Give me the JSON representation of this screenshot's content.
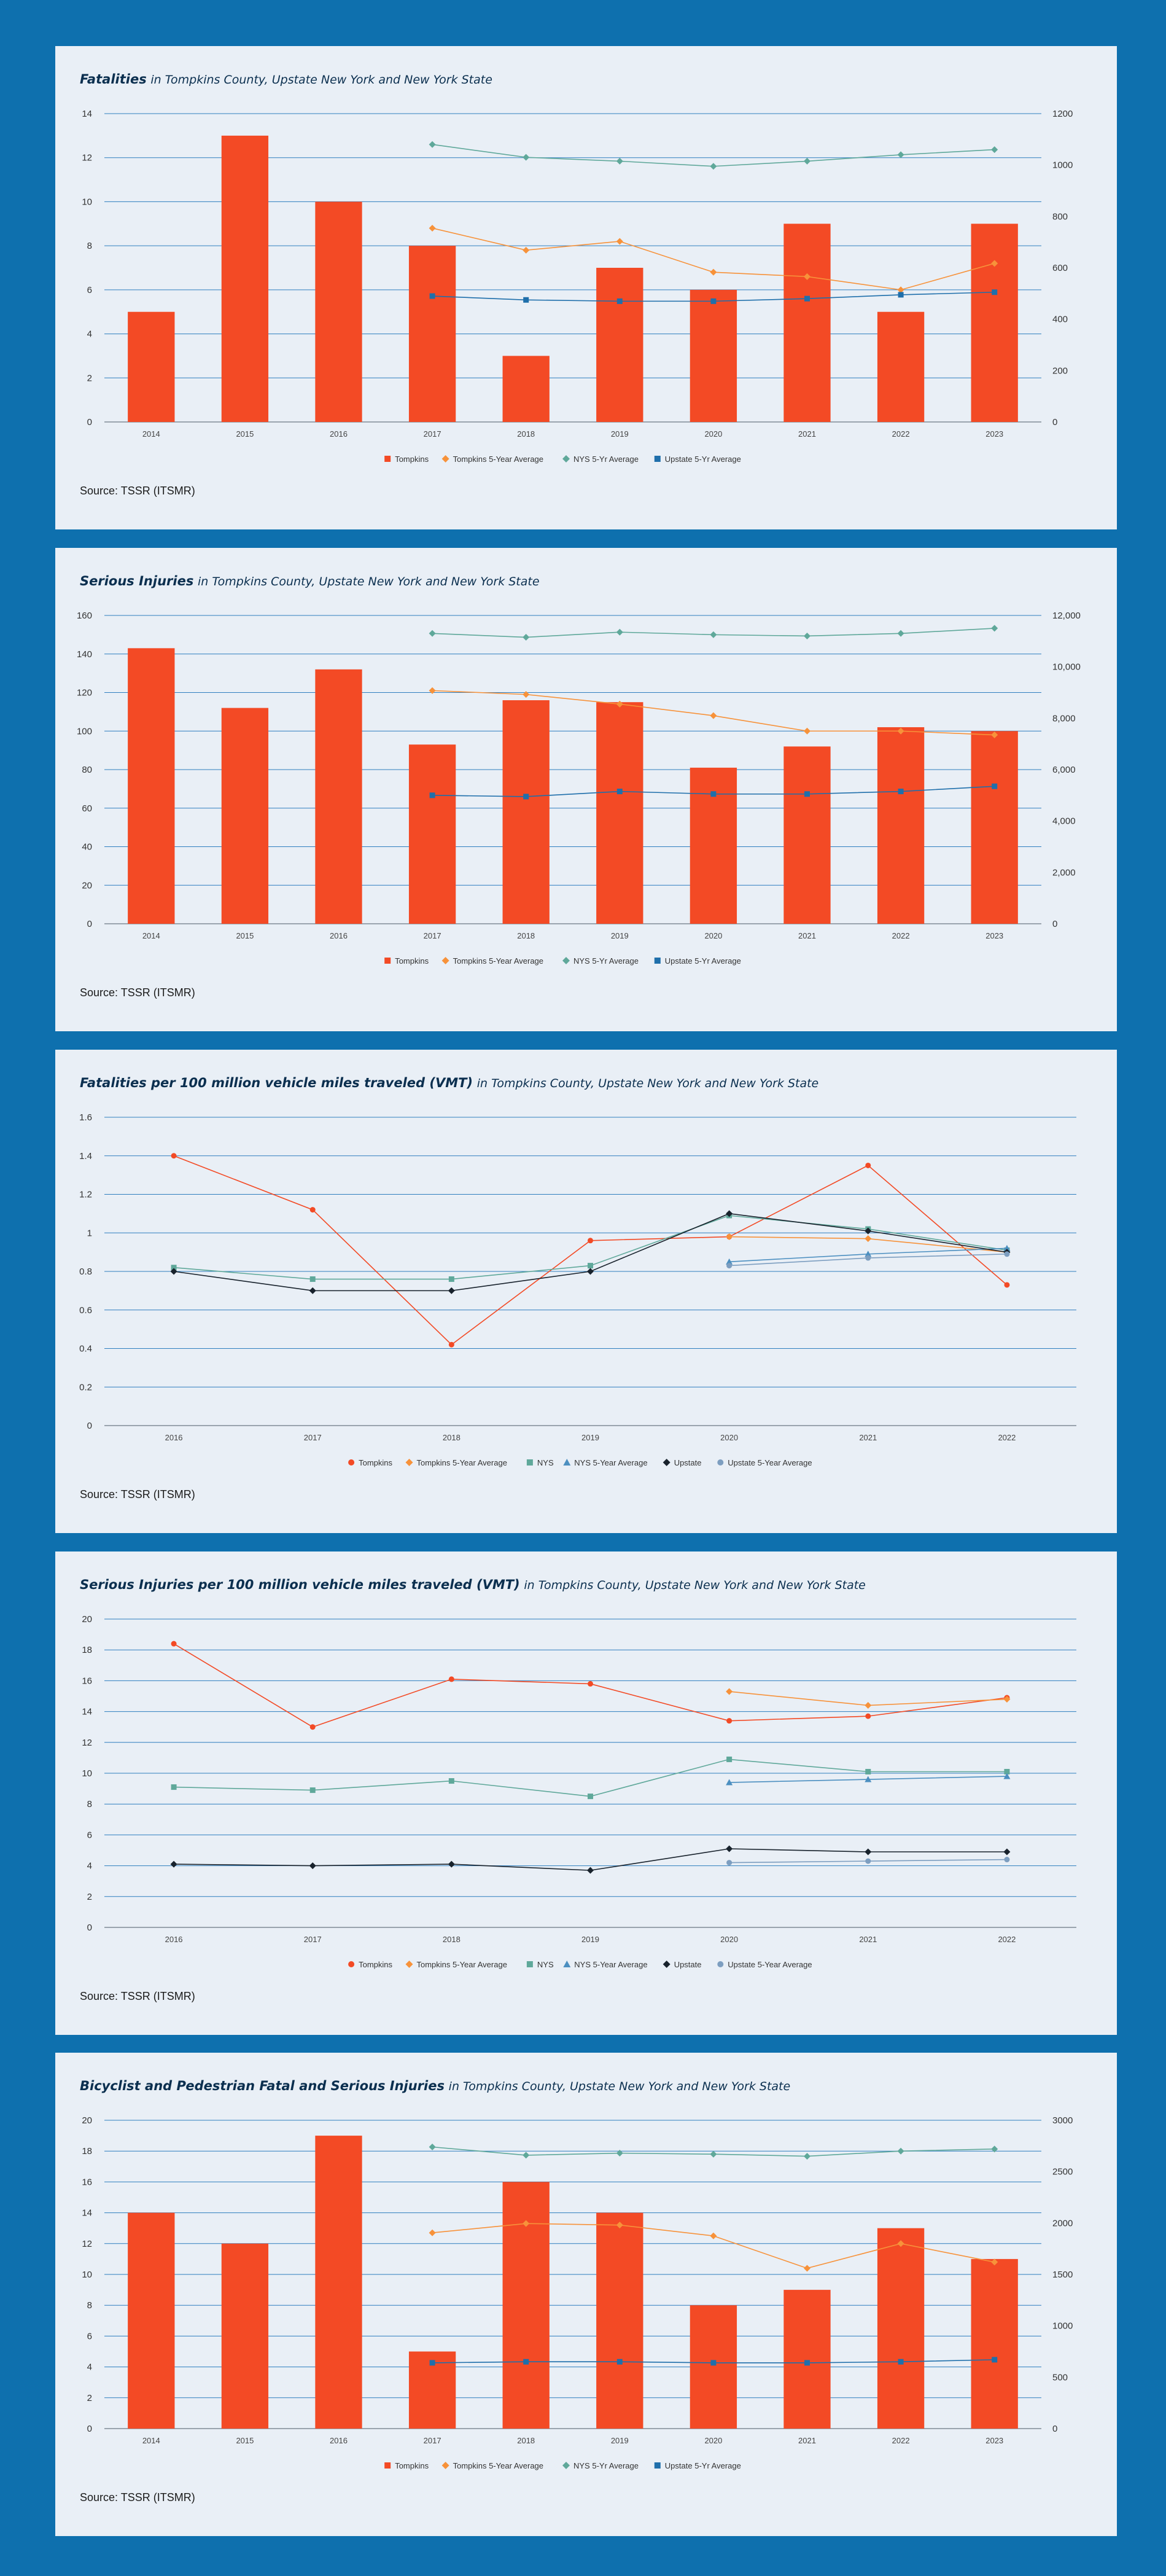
{
  "colors": {
    "background": "#0e70ae",
    "panel": "#e9eff6",
    "grid": "#2f7fbf",
    "tompkins": "#f34a25",
    "tompkins_avg": "#f7923a",
    "nys": "#5fa89a",
    "nys_avg": "#4c8fc0",
    "upstate": "#18222c",
    "upstate_avg": "#7d9ec0",
    "upstate_5yr_dot": "#1f6fab"
  },
  "source_label": "Source: TSSR (ITSMR)",
  "chart_data": [
    {
      "type": "bar",
      "title_bold": "Fatalities",
      "title_rest": "in Tompkins County, Upstate New York and New York State",
      "categories": [
        "2014",
        "2015",
        "2016",
        "2017",
        "2018",
        "2019",
        "2020",
        "2021",
        "2022",
        "2023"
      ],
      "ylim": [
        0,
        14
      ],
      "yticks": [
        "0",
        "2",
        "4",
        "6",
        "8",
        "10",
        "12",
        "14"
      ],
      "y2lim": [
        0,
        1200
      ],
      "y2ticks": [
        "0",
        "200",
        "400",
        "600",
        "800",
        "1000",
        "1200"
      ],
      "series": [
        {
          "name": "Tompkins",
          "kind": "bar",
          "axis": "left",
          "color": "#f34a25",
          "values": [
            5,
            13,
            10,
            8,
            3,
            7,
            6,
            9,
            5,
            9
          ]
        },
        {
          "name": "Tompkins 5-Year Average",
          "kind": "line",
          "axis": "left",
          "marker": "diamond",
          "color": "#f7923a",
          "values": [
            null,
            null,
            null,
            8.8,
            7.8,
            8.2,
            6.8,
            6.6,
            6.0,
            7.2
          ]
        },
        {
          "name": "NYS 5-Yr Average",
          "kind": "line",
          "axis": "right",
          "marker": "diamond",
          "color": "#5fa89a",
          "values": [
            null,
            null,
            null,
            1080,
            1030,
            1015,
            995,
            1015,
            1040,
            1060
          ]
        },
        {
          "name": "Upstate 5-Yr Average",
          "kind": "line",
          "axis": "right",
          "marker": "square",
          "color": "#1f6fab",
          "values": [
            null,
            null,
            null,
            490,
            475,
            470,
            470,
            480,
            495,
            505
          ]
        }
      ]
    },
    {
      "type": "bar",
      "title_bold": "Serious Injuries",
      "title_rest": "in Tompkins County, Upstate New York and New York State",
      "categories": [
        "2014",
        "2015",
        "2016",
        "2017",
        "2018",
        "2019",
        "2020",
        "2021",
        "2022",
        "2023"
      ],
      "ylim": [
        0,
        160
      ],
      "yticks": [
        "0",
        "20",
        "40",
        "60",
        "80",
        "100",
        "120",
        "140",
        "160"
      ],
      "y2lim": [
        0,
        12000
      ],
      "y2ticks": [
        "0",
        "2,000",
        "4,000",
        "6,000",
        "8,000",
        "10,000",
        "12,000"
      ],
      "series": [
        {
          "name": "Tompkins",
          "kind": "bar",
          "axis": "left",
          "color": "#f34a25",
          "values": [
            143,
            112,
            132,
            93,
            116,
            115,
            81,
            92,
            102,
            100
          ]
        },
        {
          "name": "Tompkins 5-Year Average",
          "kind": "line",
          "axis": "left",
          "marker": "diamond",
          "color": "#f7923a",
          "values": [
            null,
            null,
            null,
            121,
            119,
            114,
            108,
            100,
            100,
            98
          ]
        },
        {
          "name": "NYS 5-Yr Average",
          "kind": "line",
          "axis": "right",
          "marker": "diamond",
          "color": "#5fa89a",
          "values": [
            null,
            null,
            null,
            11300,
            11150,
            11350,
            11250,
            11200,
            11300,
            11500
          ]
        },
        {
          "name": "Upstate 5-Yr Average",
          "kind": "line",
          "axis": "right",
          "marker": "square",
          "color": "#1f6fab",
          "values": [
            null,
            null,
            null,
            5000,
            4950,
            5150,
            5050,
            5050,
            5150,
            5350
          ]
        }
      ]
    },
    {
      "type": "line",
      "title_bold": "Fatalities per 100 million vehicle miles traveled (VMT)",
      "title_rest": "in Tompkins County, Upstate New York and New York State",
      "categories": [
        "2016",
        "2017",
        "2018",
        "2019",
        "2020",
        "2021",
        "2022"
      ],
      "ylim": [
        0,
        1.6
      ],
      "yticks": [
        "0",
        "0.2",
        "0.4",
        "0.6",
        "0.8",
        "1",
        "1.2",
        "1.4",
        "1.6"
      ],
      "series": [
        {
          "name": "Tompkins",
          "kind": "line",
          "marker": "circle",
          "color": "#f34a25",
          "values": [
            1.4,
            1.12,
            0.42,
            0.96,
            0.98,
            1.35,
            0.73
          ]
        },
        {
          "name": "Tompkins 5-Year Average",
          "kind": "line",
          "marker": "diamond",
          "color": "#f7923a",
          "values": [
            null,
            null,
            null,
            null,
            0.98,
            0.97,
            0.9
          ]
        },
        {
          "name": "NYS",
          "kind": "line",
          "marker": "square",
          "color": "#5fa89a",
          "values": [
            0.82,
            0.76,
            0.76,
            0.83,
            1.09,
            1.02,
            0.91
          ]
        },
        {
          "name": "NYS 5-Year Average",
          "kind": "line",
          "marker": "triangle",
          "color": "#4c8fc0",
          "values": [
            null,
            null,
            null,
            null,
            0.85,
            0.89,
            0.92
          ]
        },
        {
          "name": "Upstate",
          "kind": "line",
          "marker": "diamond",
          "color": "#18222c",
          "values": [
            0.8,
            0.7,
            0.7,
            0.8,
            1.1,
            1.01,
            0.9
          ]
        },
        {
          "name": "Upstate 5-Year Average",
          "kind": "line",
          "marker": "circle",
          "color": "#7d9ec0",
          "values": [
            null,
            null,
            null,
            null,
            0.83,
            0.87,
            0.89
          ]
        }
      ]
    },
    {
      "type": "line",
      "title_bold": "Serious Injuries per 100 million vehicle miles traveled (VMT)",
      "title_rest": "in Tompkins County, Upstate New York and New York State",
      "categories": [
        "2016",
        "2017",
        "2018",
        "2019",
        "2020",
        "2021",
        "2022"
      ],
      "ylim": [
        0,
        20
      ],
      "yticks": [
        "0",
        "2",
        "4",
        "6",
        "8",
        "10",
        "12",
        "14",
        "16",
        "18",
        "20"
      ],
      "series": [
        {
          "name": "Tompkins",
          "kind": "line",
          "marker": "circle",
          "color": "#f34a25",
          "values": [
            18.4,
            13.0,
            16.1,
            15.8,
            13.4,
            13.7,
            14.9
          ]
        },
        {
          "name": "Tompkins 5-Year Average",
          "kind": "line",
          "marker": "diamond",
          "color": "#f7923a",
          "values": [
            null,
            null,
            null,
            null,
            15.3,
            14.4,
            14.8
          ]
        },
        {
          "name": "NYS",
          "kind": "line",
          "marker": "square",
          "color": "#5fa89a",
          "values": [
            9.1,
            8.9,
            9.5,
            8.5,
            10.9,
            10.1,
            10.1
          ]
        },
        {
          "name": "NYS 5-Year Average",
          "kind": "line",
          "marker": "triangle",
          "color": "#4c8fc0",
          "values": [
            null,
            null,
            null,
            null,
            9.4,
            9.6,
            9.8
          ]
        },
        {
          "name": "Upstate",
          "kind": "line",
          "marker": "diamond",
          "color": "#18222c",
          "values": [
            4.1,
            4.0,
            4.1,
            3.7,
            5.1,
            4.9,
            4.9
          ]
        },
        {
          "name": "Upstate 5-Year Average",
          "kind": "line",
          "marker": "circle",
          "color": "#7d9ec0",
          "values": [
            null,
            null,
            null,
            null,
            4.2,
            4.3,
            4.4
          ]
        }
      ]
    },
    {
      "type": "bar",
      "title_bold": "Bicyclist and Pedestrian Fatal and Serious Injuries",
      "title_rest": "in Tompkins County, Upstate New York and New York State",
      "categories": [
        "2014",
        "2015",
        "2016",
        "2017",
        "2018",
        "2019",
        "2020",
        "2021",
        "2022",
        "2023"
      ],
      "ylim": [
        0,
        20
      ],
      "yticks": [
        "0",
        "2",
        "4",
        "6",
        "8",
        "10",
        "12",
        "14",
        "16",
        "18",
        "20"
      ],
      "y2lim": [
        0,
        3000
      ],
      "y2ticks": [
        "0",
        "500",
        "1000",
        "1500",
        "2000",
        "2500",
        "3000"
      ],
      "series": [
        {
          "name": "Tompkins",
          "kind": "bar",
          "axis": "left",
          "color": "#f34a25",
          "values": [
            14,
            12,
            19,
            5,
            16,
            14,
            8,
            9,
            13,
            11
          ]
        },
        {
          "name": "Tompkins 5-Year Average",
          "kind": "line",
          "axis": "left",
          "marker": "diamond",
          "color": "#f7923a",
          "values": [
            null,
            null,
            null,
            12.7,
            13.3,
            13.2,
            12.5,
            10.4,
            12.0,
            10.8
          ]
        },
        {
          "name": "NYS 5-Yr Average",
          "kind": "line",
          "axis": "right",
          "marker": "diamond",
          "color": "#5fa89a",
          "values": [
            null,
            null,
            null,
            2740,
            2660,
            2680,
            2670,
            2650,
            2700,
            2720
          ]
        },
        {
          "name": "Upstate 5-Yr Average",
          "kind": "line",
          "axis": "right",
          "marker": "square",
          "color": "#1f6fab",
          "values": [
            null,
            null,
            null,
            640,
            650,
            650,
            640,
            640,
            650,
            670
          ]
        }
      ]
    }
  ]
}
